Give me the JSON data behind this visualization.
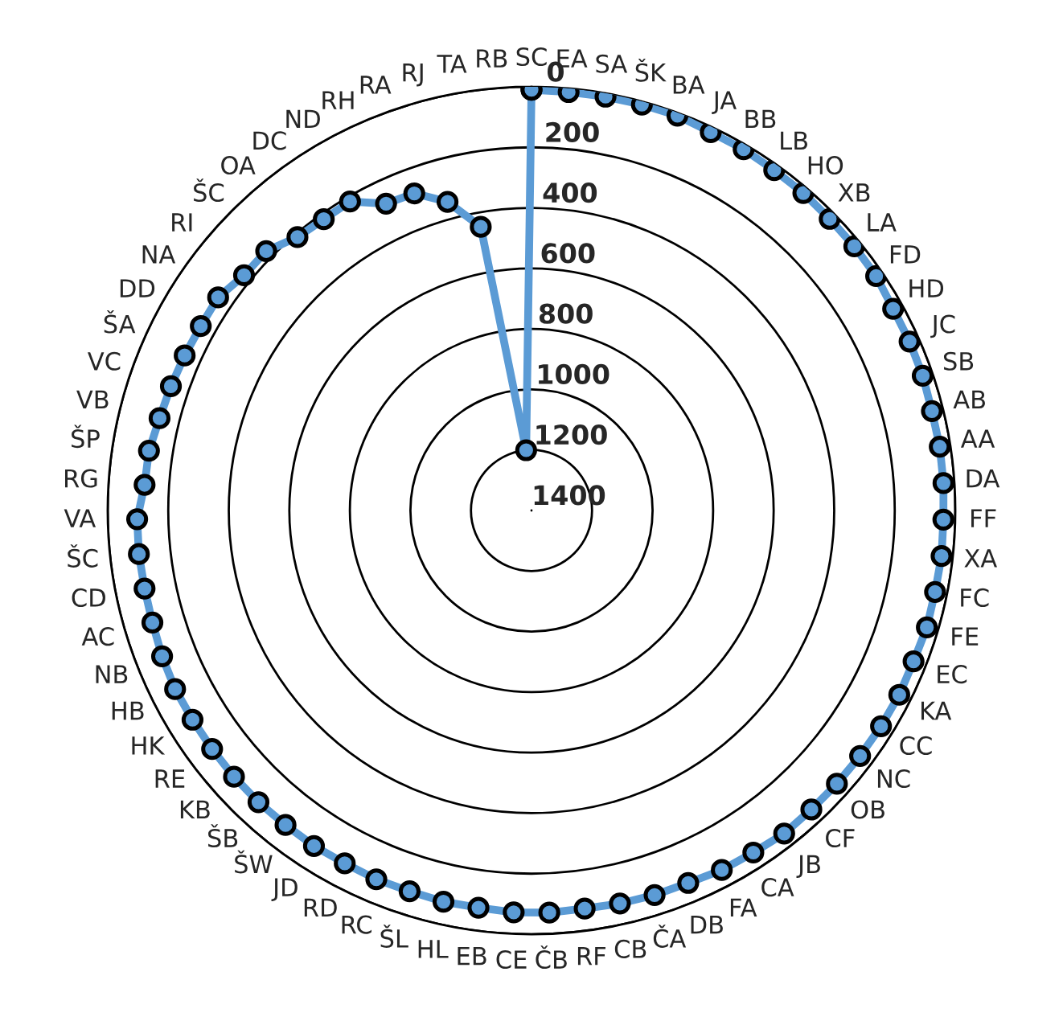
{
  "chart_data": {
    "type": "radar",
    "categories": [
      "SC",
      "EA",
      "SA",
      "ŠK",
      "BA",
      "JA",
      "BB",
      "LB",
      "HO",
      "XB",
      "LA",
      "FD",
      "HD",
      "JC",
      "SB",
      "AB",
      "AA",
      "DA",
      "FF",
      "XA",
      "FC",
      "FE",
      "EC",
      "KA",
      "CC",
      "NC",
      "OB",
      "CF",
      "JB",
      "CA",
      "FA",
      "DB",
      "ČA",
      "CB",
      "RF",
      "ČB",
      "CE",
      "EB",
      "HL",
      "ŠL",
      "RC",
      "RD",
      "JD",
      "ŠW",
      "ŠB",
      "KB",
      "RE",
      "HK",
      "HB",
      "NB",
      "AC",
      "CD",
      "ŠC",
      "VA",
      "RG",
      "ŠP",
      "VB",
      "VC",
      "ŠA",
      "DD",
      "NA",
      "RI",
      "ŠC",
      "OA",
      "DC",
      "ND",
      "RH",
      "RA",
      "RJ",
      "TA",
      "RB"
    ],
    "series": [
      {
        "color": "#5b9bd5",
        "values": [
          10,
          12,
          11,
          10,
          9,
          17,
          16,
          19,
          19,
          22,
          22,
          23,
          32,
          32,
          33,
          37,
          35,
          36,
          39,
          37,
          40,
          38,
          43,
          41,
          43,
          45,
          46,
          47,
          45,
          53,
          56,
          65,
          66,
          69,
          73,
          70,
          71,
          76,
          75,
          79,
          78,
          81,
          79,
          81,
          80,
          81,
          83,
          84,
          83,
          88,
          94,
          96,
          95,
          97,
          119,
          121,
          134,
          140,
          145,
          149,
          148,
          173,
          174,
          211,
          218,
          216,
          278,
          283,
          343,
          448,
          1200
        ]
      }
    ],
    "ylim": [
      1400,
      0
    ],
    "yticks": [
      0,
      200,
      400,
      600,
      800,
      1000,
      1200,
      1400
    ],
    "grid": "y",
    "marker": "circle",
    "line_style": "solid"
  }
}
